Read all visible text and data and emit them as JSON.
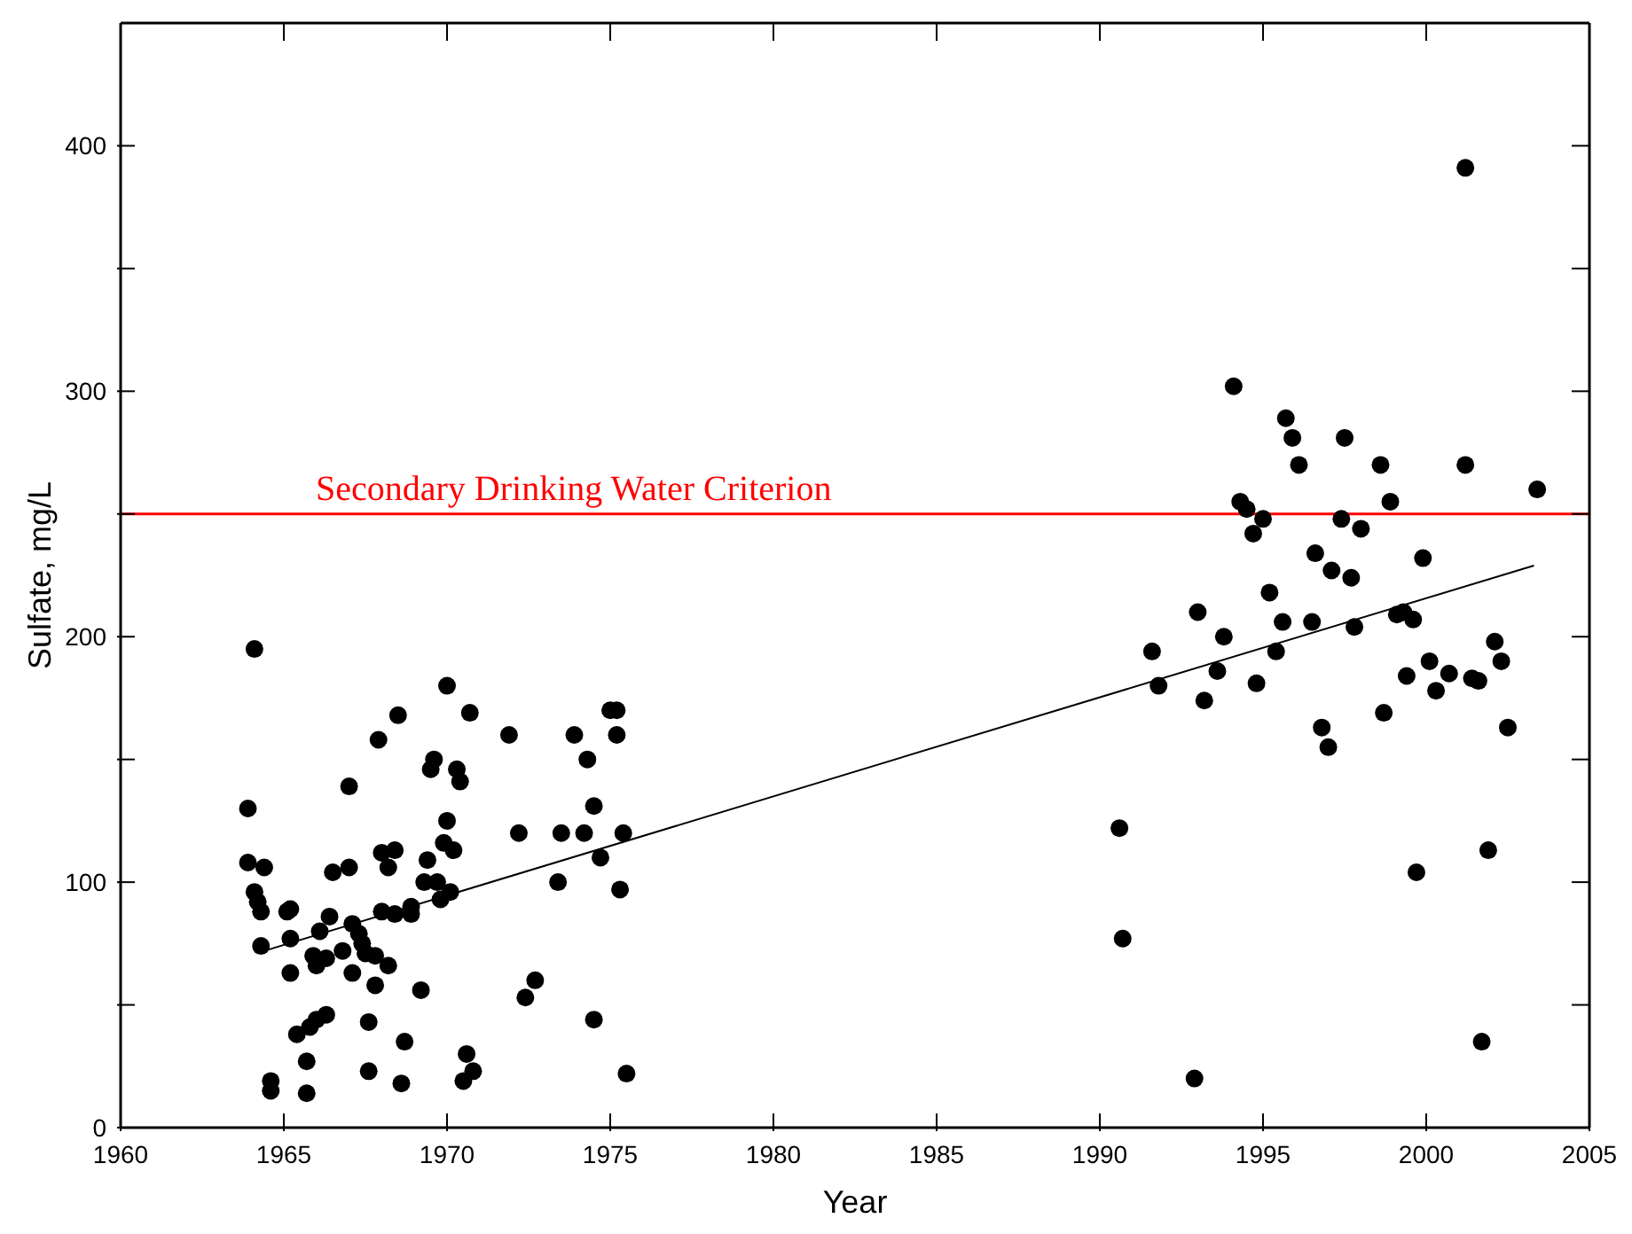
{
  "chart_data": {
    "type": "scatter",
    "xlabel": "Year",
    "ylabel": "Sulfate, mg/L",
    "xlim": [
      1960,
      2005
    ],
    "xticks": [
      1960,
      1965,
      1970,
      1975,
      1980,
      1985,
      1990,
      1995,
      2000,
      2005
    ],
    "ylim": [
      0,
      450
    ],
    "yticks": [
      0,
      {
        "value": 50,
        "label": null
      },
      100,
      {
        "value": 150,
        "label": null
      },
      200,
      {
        "value": 250,
        "label": null
      },
      300,
      {
        "value": 350,
        "label": null
      },
      400
    ],
    "grid": false,
    "marker": "circle",
    "ref_lines": [
      {
        "axis": "y",
        "value": 250,
        "label": "Secondary Drinking Water Criterion",
        "color": "#ff0000",
        "line_style": "solid"
      }
    ],
    "series": [
      {
        "color": "#000000",
        "x": [
          1963.9,
          1963.9,
          1964.1,
          1964.1,
          1964.2,
          1964.3,
          1964.4,
          1964.3,
          1964.6,
          1964.6,
          1965.1,
          1965.2,
          1965.2,
          1965.2,
          1965.4,
          1965.7,
          1965.7,
          1965.8,
          1966.0,
          1965.9,
          1966.0,
          1966.1,
          1966.3,
          1966.3,
          1966.4,
          1966.5,
          1966.8,
          1967.0,
          1967.0,
          1967.1,
          1967.1,
          1967.3,
          1967.4,
          1967.5,
          1967.6,
          1967.6,
          1967.8,
          1967.8,
          1967.9,
          1968.0,
          1968.0,
          1968.2,
          1968.2,
          1968.4,
          1968.4,
          1968.5,
          1968.6,
          1968.7,
          1968.9,
          1968.9,
          1969.2,
          1969.3,
          1969.4,
          1969.5,
          1969.6,
          1969.7,
          1969.8,
          1969.9,
          1970.0,
          1970.0,
          1970.1,
          1970.2,
          1970.3,
          1970.4,
          1970.5,
          1970.6,
          1970.7,
          1970.8,
          1971.9,
          1972.2,
          1972.4,
          1972.7,
          1973.4,
          1973.5,
          1973.9,
          1974.2,
          1974.3,
          1974.5,
          1974.5,
          1974.7,
          1975.0,
          1975.2,
          1975.2,
          1975.3,
          1975.4,
          1975.5,
          1994.1,
          1995.7,
          1995.9,
          1997.5,
          1996.1,
          1998.6,
          2001.2,
          2003.4,
          1994.3,
          1994.5,
          1998.9,
          1995.0,
          1997.4,
          1994.7,
          1998.0,
          1996.6,
          1999.9,
          1997.1,
          1997.7,
          1995.2,
          1993.0,
          1995.6,
          1996.5,
          1999.1,
          1999.3,
          1999.6,
          1997.8,
          1993.8,
          1991.6,
          1995.4,
          2002.1,
          2002.3,
          2000.1,
          2000.7,
          1999.4,
          2000.3,
          2001.4,
          2001.6,
          1991.8,
          1993.6,
          1994.8,
          1993.2,
          1996.8,
          1997.0,
          2002.5,
          1998.7,
          1990.6,
          2001.9,
          1999.7,
          1990.7,
          2001.7,
          1992.9,
          2001.2
        ],
        "values": [
          130,
          108,
          195,
          96,
          92,
          88,
          106,
          74,
          19,
          15,
          88,
          89,
          63,
          77,
          38,
          27,
          14,
          41,
          44,
          70,
          66,
          80,
          46,
          69,
          86,
          104,
          72,
          106,
          139,
          63,
          83,
          79,
          75,
          71,
          23,
          43,
          70,
          58,
          158,
          112,
          88,
          106,
          66,
          113,
          87,
          168,
          18,
          35,
          90,
          87,
          56,
          100,
          109,
          146,
          150,
          100,
          93,
          116,
          125,
          180,
          96,
          113,
          146,
          141,
          19,
          30,
          169,
          23,
          160,
          120,
          53,
          60,
          100,
          120,
          160,
          120,
          150,
          131,
          44,
          110,
          170,
          170,
          160,
          97,
          120,
          22,
          302,
          289,
          281,
          281,
          270,
          270,
          270,
          260,
          255,
          252,
          255,
          248,
          248,
          242,
          244,
          234,
          232,
          227,
          224,
          218,
          210,
          206,
          206,
          209,
          210,
          207,
          204,
          200,
          194,
          194,
          198,
          190,
          190,
          185,
          184,
          178,
          183,
          182,
          180,
          186,
          181,
          174,
          163,
          155,
          163,
          169,
          122,
          113,
          104,
          77,
          35,
          20,
          391
        ]
      },
      {
        "type": "line",
        "color": "#000000",
        "marker": "none",
        "line_style": "solid",
        "x": [
          1964.4,
          2003.3
        ],
        "values": [
          72,
          229
        ]
      }
    ]
  }
}
